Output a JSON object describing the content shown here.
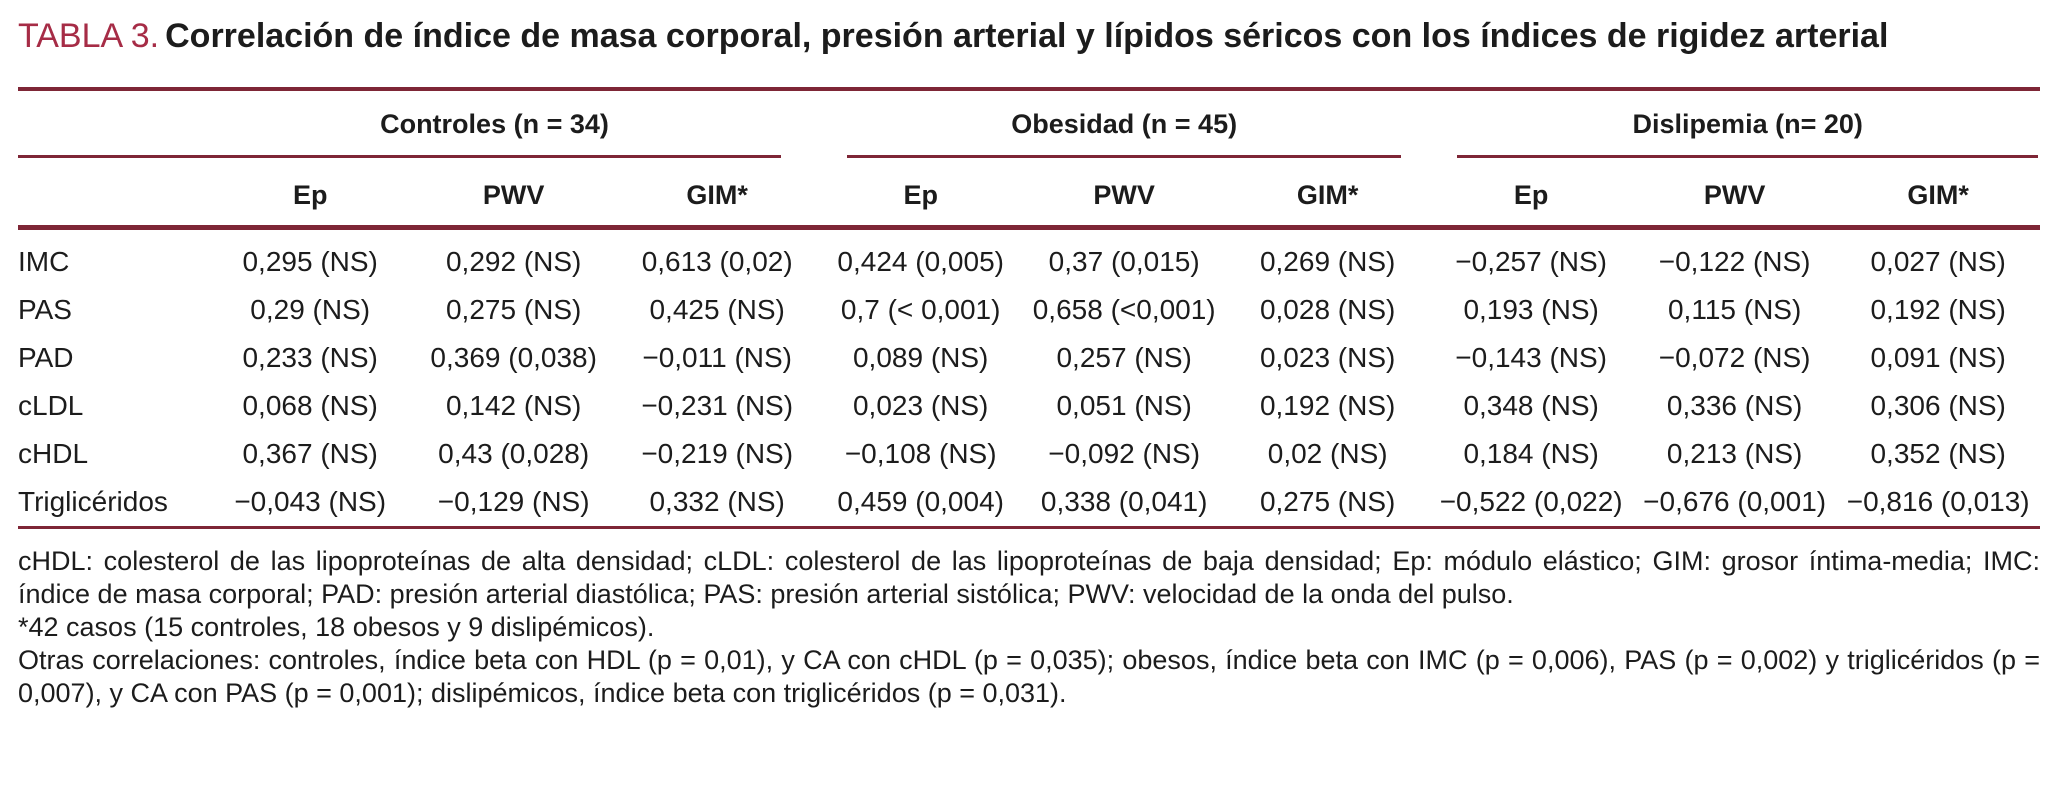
{
  "title": {
    "label": "TABLA 3.",
    "text": "Correlación de índice de masa corporal, presión arterial y lípidos séricos con los índices de rigidez arterial"
  },
  "colors": {
    "accent_title": "#A62C46",
    "rule": "#7E2636",
    "text": "#1c1c1c"
  },
  "table": {
    "groups": [
      {
        "label": "Controles (n = 34)",
        "columns": [
          "Ep",
          "PWV",
          "GIM*"
        ]
      },
      {
        "label": "Obesidad (n = 45)",
        "columns": [
          "Ep",
          "PWV",
          "GIM*"
        ]
      },
      {
        "label": "Dislipemia (n= 20)",
        "columns": [
          "Ep",
          "PWV",
          "GIM*"
        ]
      }
    ],
    "rows": [
      {
        "label": "IMC",
        "values": [
          "0,295 (NS)",
          "0,292 (NS)",
          "0,613 (0,02)",
          "0,424 (0,005)",
          "0,37 (0,015)",
          "0,269 (NS)",
          "−0,257 (NS)",
          "−0,122 (NS)",
          "0,027 (NS)"
        ]
      },
      {
        "label": "PAS",
        "values": [
          "0,29 (NS)",
          "0,275 (NS)",
          "0,425 (NS)",
          "0,7 (< 0,001)",
          "0,658 (<0,001)",
          "0,028 (NS)",
          "0,193 (NS)",
          "0,115 (NS)",
          "0,192 (NS)"
        ]
      },
      {
        "label": "PAD",
        "values": [
          "0,233 (NS)",
          "0,369 (0,038)",
          "−0,011 (NS)",
          "0,089 (NS)",
          "0,257 (NS)",
          "0,023 (NS)",
          "−0,143 (NS)",
          "−0,072 (NS)",
          "0,091 (NS)"
        ]
      },
      {
        "label": "cLDL",
        "values": [
          "0,068 (NS)",
          "0,142 (NS)",
          "−0,231 (NS)",
          "0,023 (NS)",
          "0,051 (NS)",
          "0,192 (NS)",
          "0,348 (NS)",
          "0,336 (NS)",
          "0,306 (NS)"
        ]
      },
      {
        "label": "cHDL",
        "values": [
          "0,367 (NS)",
          "0,43 (0,028)",
          "−0,219 (NS)",
          "−0,108 (NS)",
          "−0,092 (NS)",
          "0,02 (NS)",
          "0,184 (NS)",
          "0,213 (NS)",
          "0,352 (NS)"
        ]
      },
      {
        "label": "Triglicéridos",
        "values": [
          "−0,043 (NS)",
          "−0,129 (NS)",
          "0,332 (NS)",
          "0,459 (0,004)",
          "0,338 (0,041)",
          "0,275 (NS)",
          "−0,522 (0,022)",
          "−0,676 (0,001)",
          "−0,816 (0,013)"
        ]
      }
    ]
  },
  "footnotes": [
    "cHDL: colesterol de las lipoproteínas de alta densidad; cLDL: colesterol de las lipoproteínas de baja densidad; Ep: módulo elástico; GIM: grosor íntima-media; IMC: índice de masa corporal; PAD: presión arterial diastólica; PAS: presión arterial sistólica; PWV: velocidad de la onda del pulso.",
    "*42 casos (15 controles, 18 obesos y 9 dislipémicos).",
    "Otras correlaciones: controles, índice beta con HDL (p = 0,01), y CA con cHDL (p = 0,035); obesos, índice beta con IMC (p = 0,006), PAS (p = 0,002) y triglicéridos (p = 0,007), y CA con PAS (p = 0,001); dislipémicos, índice beta con triglicéridos (p = 0,031)."
  ]
}
